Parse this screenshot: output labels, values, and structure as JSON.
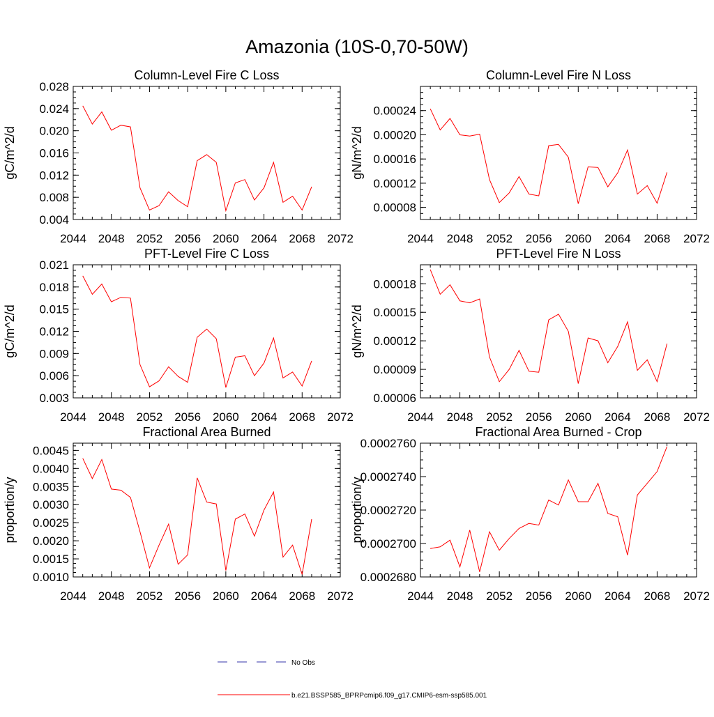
{
  "title": "Amazonia (10S-0,70-50W)",
  "colors": {
    "series_line": "#ff0000",
    "obs_line": "#3333aa",
    "axis": "#000000"
  },
  "legend": {
    "items": [
      {
        "label": "No Obs",
        "style": "dashed",
        "color": "#3333aa"
      },
      {
        "label": "b.e21.BSSP585_BPRPcmip6.f09_g17.CMIP6-esm-ssp585.001",
        "style": "solid",
        "color": "#ff0000"
      }
    ]
  },
  "chart_data": [
    {
      "type": "line",
      "title": "Column-Level Fire C Loss",
      "ylabel": "gC/m^2/d",
      "xlim": [
        2044,
        2072
      ],
      "x_ticks": [
        2044,
        2048,
        2052,
        2056,
        2060,
        2064,
        2068,
        2072
      ],
      "ylim": [
        0.004,
        0.028
      ],
      "y_ticks": [
        "0.004",
        "0.008",
        "0.012",
        "0.016",
        "0.020",
        "0.024",
        "0.028"
      ],
      "grid": false,
      "x": [
        2045,
        2046,
        2047,
        2048,
        2049,
        2050,
        2051,
        2052,
        2053,
        2054,
        2055,
        2056,
        2057,
        2058,
        2059,
        2060,
        2061,
        2062,
        2063,
        2064,
        2065,
        2066,
        2067,
        2068,
        2069
      ],
      "series": [
        {
          "name": "b.e21.BSSP585_BPRPcmip6.f09_g17.CMIP6-esm-ssp585.001",
          "values": [
            0.0245,
            0.0212,
            0.0234,
            0.0201,
            0.021,
            0.0207,
            0.0097,
            0.0057,
            0.0065,
            0.009,
            0.0074,
            0.0063,
            0.0146,
            0.0157,
            0.0143,
            0.0056,
            0.0106,
            0.0112,
            0.0075,
            0.0097,
            0.0143,
            0.0071,
            0.0082,
            0.0057,
            0.0099
          ]
        }
      ]
    },
    {
      "type": "line",
      "title": "Column-Level Fire N Loss",
      "ylabel": "gN/m^2/d",
      "xlim": [
        2044,
        2072
      ],
      "x_ticks": [
        2044,
        2048,
        2052,
        2056,
        2060,
        2064,
        2068,
        2072
      ],
      "ylim": [
        6e-05,
        0.00028
      ],
      "y_ticks": [
        "0.00008",
        "0.00012",
        "0.00016",
        "0.00020",
        "0.00024"
      ],
      "grid": false,
      "x": [
        2045,
        2046,
        2047,
        2048,
        2049,
        2050,
        2051,
        2052,
        2053,
        2054,
        2055,
        2056,
        2057,
        2058,
        2059,
        2060,
        2061,
        2062,
        2063,
        2064,
        2065,
        2066,
        2067,
        2068,
        2069
      ],
      "series": [
        {
          "name": "b.e21.BSSP585_BPRPcmip6.f09_g17.CMIP6-esm-ssp585.001",
          "values": [
            0.000243,
            0.000208,
            0.000227,
            0.0002,
            0.000198,
            0.000201,
            0.000126,
            8.8e-05,
            0.000104,
            0.000131,
            0.000102,
            9.9e-05,
            0.000182,
            0.000184,
            0.000163,
            8.6e-05,
            0.000147,
            0.000146,
            0.000114,
            0.000137,
            0.000175,
            0.000102,
            0.000116,
            8.7e-05,
            0.000138
          ]
        }
      ]
    },
    {
      "type": "line",
      "title": "PFT-Level Fire C Loss",
      "ylabel": "gC/m^2/d",
      "xlim": [
        2044,
        2072
      ],
      "x_ticks": [
        2044,
        2048,
        2052,
        2056,
        2060,
        2064,
        2068,
        2072
      ],
      "ylim": [
        0.003,
        0.021
      ],
      "y_ticks": [
        "0.003",
        "0.006",
        "0.009",
        "0.012",
        "0.015",
        "0.018",
        "0.021"
      ],
      "grid": false,
      "x": [
        2045,
        2046,
        2047,
        2048,
        2049,
        2050,
        2051,
        2052,
        2053,
        2054,
        2055,
        2056,
        2057,
        2058,
        2059,
        2060,
        2061,
        2062,
        2063,
        2064,
        2065,
        2066,
        2067,
        2068,
        2069
      ],
      "series": [
        {
          "name": "b.e21.BSSP585_BPRPcmip6.f09_g17.CMIP6-esm-ssp585.001",
          "values": [
            0.0195,
            0.017,
            0.0184,
            0.016,
            0.0166,
            0.0165,
            0.0075,
            0.0045,
            0.0053,
            0.0072,
            0.0059,
            0.0051,
            0.0112,
            0.0123,
            0.011,
            0.0044,
            0.0085,
            0.0087,
            0.006,
            0.0077,
            0.0111,
            0.0057,
            0.0065,
            0.0046,
            0.008
          ]
        }
      ]
    },
    {
      "type": "line",
      "title": "PFT-Level Fire N Loss",
      "ylabel": "gN/m^2/d",
      "xlim": [
        2044,
        2072
      ],
      "x_ticks": [
        2044,
        2048,
        2052,
        2056,
        2060,
        2064,
        2068,
        2072
      ],
      "ylim": [
        6e-05,
        0.0002
      ],
      "y_ticks": [
        "0.00006",
        "0.00009",
        "0.00012",
        "0.00015",
        "0.00018"
      ],
      "grid": false,
      "x": [
        2045,
        2046,
        2047,
        2048,
        2049,
        2050,
        2051,
        2052,
        2053,
        2054,
        2055,
        2056,
        2057,
        2058,
        2059,
        2060,
        2061,
        2062,
        2063,
        2064,
        2065,
        2066,
        2067,
        2068,
        2069
      ],
      "series": [
        {
          "name": "b.e21.BSSP585_BPRPcmip6.f09_g17.CMIP6-esm-ssp585.001",
          "values": [
            0.000195,
            0.000169,
            0.000179,
            0.000162,
            0.00016,
            0.000164,
            0.000103,
            7.7e-05,
            9e-05,
            0.00011,
            8.8e-05,
            8.7e-05,
            0.000142,
            0.000148,
            0.00013,
            7.5e-05,
            0.000123,
            0.00012,
            9.7e-05,
            0.000114,
            0.00014,
            8.9e-05,
            0.0001,
            7.7e-05,
            0.000117
          ]
        }
      ]
    },
    {
      "type": "line",
      "title": "Fractional Area Burned",
      "ylabel": "proportion/y",
      "xlim": [
        2044,
        2072
      ],
      "x_ticks": [
        2044,
        2048,
        2052,
        2056,
        2060,
        2064,
        2068,
        2072
      ],
      "ylim": [
        0.001,
        0.0047
      ],
      "y_ticks": [
        "0.0010",
        "0.0015",
        "0.0020",
        "0.0025",
        "0.0030",
        "0.0035",
        "0.0040",
        "0.0045"
      ],
      "grid": false,
      "x": [
        2045,
        2046,
        2047,
        2048,
        2049,
        2050,
        2051,
        2052,
        2053,
        2054,
        2055,
        2056,
        2057,
        2058,
        2059,
        2060,
        2061,
        2062,
        2063,
        2064,
        2065,
        2066,
        2067,
        2068,
        2069
      ],
      "series": [
        {
          "name": "b.e21.BSSP585_BPRPcmip6.f09_g17.CMIP6-esm-ssp585.001",
          "values": [
            0.00428,
            0.00372,
            0.00425,
            0.00343,
            0.0034,
            0.0032,
            0.00225,
            0.00125,
            0.00188,
            0.00246,
            0.00135,
            0.00161,
            0.00374,
            0.00307,
            0.00302,
            0.00118,
            0.0026,
            0.00274,
            0.00213,
            0.00285,
            0.00335,
            0.00155,
            0.00188,
            0.00107,
            0.0026
          ]
        }
      ]
    },
    {
      "type": "line",
      "title": "Fractional Area Burned - Crop",
      "ylabel": "proportion/y",
      "xlim": [
        2044,
        2072
      ],
      "x_ticks": [
        2044,
        2048,
        2052,
        2056,
        2060,
        2064,
        2068,
        2072
      ],
      "ylim": [
        0.000268,
        0.000276
      ],
      "y_ticks": [
        "0.0002680",
        "0.0002700",
        "0.0002720",
        "0.0002740",
        "0.0002760"
      ],
      "grid": false,
      "x": [
        2045,
        2046,
        2047,
        2048,
        2049,
        2050,
        2051,
        2052,
        2053,
        2054,
        2055,
        2056,
        2057,
        2058,
        2059,
        2060,
        2061,
        2062,
        2063,
        2064,
        2065,
        2066,
        2067,
        2068,
        2069
      ],
      "series": [
        {
          "name": "b.e21.BSSP585_BPRPcmip6.f09_g17.CMIP6-esm-ssp585.001",
          "values": [
            0.0002697,
            0.0002698,
            0.0002702,
            0.0002686,
            0.0002708,
            0.0002683,
            0.0002707,
            0.0002696,
            0.0002703,
            0.0002709,
            0.0002712,
            0.0002711,
            0.0002726,
            0.0002723,
            0.0002738,
            0.0002725,
            0.0002725,
            0.0002736,
            0.0002718,
            0.0002716,
            0.0002693,
            0.0002729,
            0.0002736,
            0.0002743,
            0.0002758
          ]
        }
      ]
    }
  ]
}
